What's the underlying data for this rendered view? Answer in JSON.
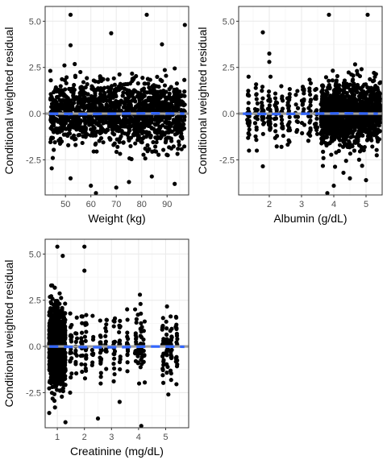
{
  "chart_data": [
    {
      "type": "scatter",
      "title": "",
      "xlabel": "Weight (kg)",
      "ylabel": "Conditional weighted residual",
      "xlim": [
        42,
        98.5
      ],
      "ylim": [
        -4.4,
        5.8
      ],
      "xticks": [
        50,
        60,
        70,
        80,
        90
      ],
      "yticks": [
        -2.5,
        0.0,
        2.5,
        5.0
      ],
      "ytick_labels": [
        "-2.5",
        "0.0",
        "2.5",
        "5.0"
      ],
      "grid": true,
      "reference_line_y": 0,
      "smooth_line": {
        "color": "#3366FF",
        "style": "dashed",
        "y": [
          0.0,
          -0.03,
          0.0,
          0.02,
          0.0
        ]
      },
      "cluster": {
        "x_range": [
          44,
          97
        ],
        "dense_y_range": [
          -1.8,
          2.0
        ],
        "sparse_y_range": [
          -3.5,
          3.3
        ]
      },
      "outliers": [
        {
          "x": 52,
          "y": 5.35
        },
        {
          "x": 82,
          "y": 5.35
        },
        {
          "x": 97,
          "y": 4.8
        },
        {
          "x": 68,
          "y": 4.35
        },
        {
          "x": 52,
          "y": 3.7
        },
        {
          "x": 88,
          "y": 3.75
        },
        {
          "x": 60,
          "y": -3.9
        },
        {
          "x": 62,
          "y": -4.3
        },
        {
          "x": 70,
          "y": -4.0
        },
        {
          "x": 52,
          "y": -3.5
        },
        {
          "x": 75,
          "y": -3.7
        },
        {
          "x": 84,
          "y": -3.4
        },
        {
          "x": 93,
          "y": -3.8
        },
        {
          "x": 45,
          "y": -2.4
        },
        {
          "x": 46,
          "y": 1.3
        }
      ]
    },
    {
      "type": "scatter",
      "title": "",
      "xlabel": "Albumin (g/dL)",
      "ylabel": "Conditional weighted residual",
      "xlim": [
        1.05,
        5.5
      ],
      "ylim": [
        -4.4,
        5.8
      ],
      "xticks": [
        2,
        3,
        4,
        5
      ],
      "yticks": [
        -2.5,
        0.0,
        2.5,
        5.0
      ],
      "ytick_labels": [
        "-2.5",
        "0.0",
        "2.5",
        "5.0"
      ],
      "grid": true,
      "reference_line_y": 0,
      "smooth_line": {
        "color": "#3366FF",
        "style": "dashed",
        "y": [
          0.0,
          -0.03,
          0.0,
          0.02,
          0.0
        ]
      },
      "cluster": {
        "x_range": [
          3.6,
          5.45
        ],
        "dense_y_range": [
          -1.8,
          2.0
        ],
        "sparse_y_range": [
          -3.5,
          3.2
        ],
        "sparse_x_range": [
          1.3,
          3.5
        ],
        "sparse_y_range_low": [
          -2.0,
          2.0
        ]
      },
      "outliers": [
        {
          "x": 3.85,
          "y": 5.35
        },
        {
          "x": 5.05,
          "y": 5.35
        },
        {
          "x": 1.8,
          "y": 4.4
        },
        {
          "x": 2.0,
          "y": 3.25
        },
        {
          "x": 2.0,
          "y": 2.8
        },
        {
          "x": 1.8,
          "y": -2.85
        },
        {
          "x": 3.8,
          "y": -4.3
        },
        {
          "x": 4.0,
          "y": -3.9
        },
        {
          "x": 4.5,
          "y": -3.5
        },
        {
          "x": 5.0,
          "y": -3.6
        },
        {
          "x": 4.3,
          "y": -3.2
        }
      ]
    },
    {
      "type": "scatter",
      "title": "",
      "xlabel": "Creatinine (mg/dL)",
      "ylabel": "Conditional weighted residual",
      "xlim": [
        0.55,
        5.85
      ],
      "ylim": [
        -4.4,
        5.8
      ],
      "xticks": [
        1,
        2,
        3,
        4,
        5
      ],
      "yticks": [
        -2.5,
        0.0,
        2.5,
        5.0
      ],
      "ytick_labels": [
        "-2.5",
        "0.0",
        "2.5",
        "5.0"
      ],
      "grid": true,
      "reference_line_y": 0,
      "smooth_line": {
        "color": "#3366FF",
        "style": "dashed",
        "y": [
          0.0,
          -0.04,
          -0.05,
          0.0,
          -0.02
        ]
      },
      "cluster": {
        "x_range": [
          0.7,
          1.3
        ],
        "dense_y_range": [
          -2.5,
          3.0
        ],
        "sparse_y_range": [
          -3.5,
          4.5
        ],
        "sparse_x_range": [
          1.2,
          5.6
        ],
        "sparse_y_range_low": [
          -2.5,
          2.3
        ]
      },
      "outliers": [
        {
          "x": 1.0,
          "y": 5.4
        },
        {
          "x": 1.2,
          "y": 4.9
        },
        {
          "x": 2.0,
          "y": 5.4
        },
        {
          "x": 2.0,
          "y": 4.1
        },
        {
          "x": 0.7,
          "y": -3.6
        },
        {
          "x": 1.3,
          "y": -4.1
        },
        {
          "x": 2.5,
          "y": -3.9
        },
        {
          "x": 3.3,
          "y": -3.0
        },
        {
          "x": 4.1,
          "y": -4.3
        },
        {
          "x": 4.05,
          "y": 2.8
        },
        {
          "x": 5.1,
          "y": -2.6
        }
      ]
    }
  ]
}
